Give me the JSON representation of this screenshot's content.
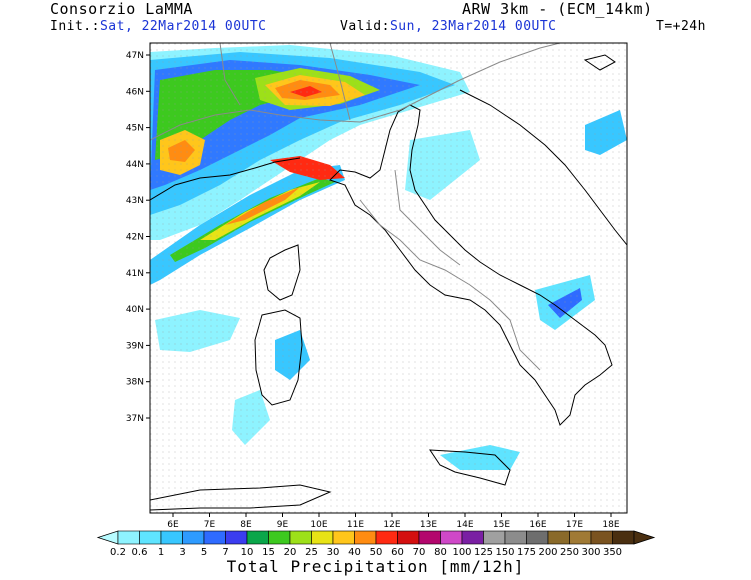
{
  "header": {
    "org": "Consorzio LaMMA",
    "init_label": "Init.:",
    "init_value": "Sat, 22Mar2014 00UTC",
    "model": "ARW 3km - (ECM_14km)",
    "valid_label": "Valid:",
    "valid_value": "Sun, 23Mar2014 00UTC",
    "lead": "T=+24h"
  },
  "map": {
    "lat_ticks": [
      "47N",
      "46N",
      "45N",
      "44N",
      "43N",
      "42N",
      "41N",
      "40N",
      "39N",
      "38N",
      "37N"
    ],
    "lon_ticks": [
      "6E",
      "7E",
      "8E",
      "9E",
      "10E",
      "11E",
      "12E",
      "13E",
      "14E",
      "15E",
      "16E",
      "17E",
      "18E"
    ]
  },
  "colorbar": {
    "title": "Total Precipitation [mm/12h]",
    "levels": [
      "0.2",
      "0.6",
      "1",
      "3",
      "5",
      "7",
      "10",
      "15",
      "20",
      "25",
      "30",
      "40",
      "50",
      "60",
      "70",
      "80",
      "100",
      "125",
      "150",
      "175",
      "200",
      "250",
      "300",
      "350"
    ],
    "colors": [
      "#8ef3ff",
      "#5fe4ff",
      "#38c7ff",
      "#2e9bff",
      "#2f6bff",
      "#3b3df0",
      "#0aa64a",
      "#3dc91f",
      "#9de019",
      "#e8e316",
      "#ffc61b",
      "#ff8c12",
      "#ff2a12",
      "#d40f0f",
      "#b3066d",
      "#cf48c8",
      "#7a1fa3",
      "#a0a0a0",
      "#8c8c8c",
      "#6e6e6e",
      "#8a6a2a",
      "#a07a35",
      "#7a5320",
      "#4a2f10"
    ],
    "left_end_color": "#b8fbff",
    "right_end_color": "#4a2f10"
  }
}
